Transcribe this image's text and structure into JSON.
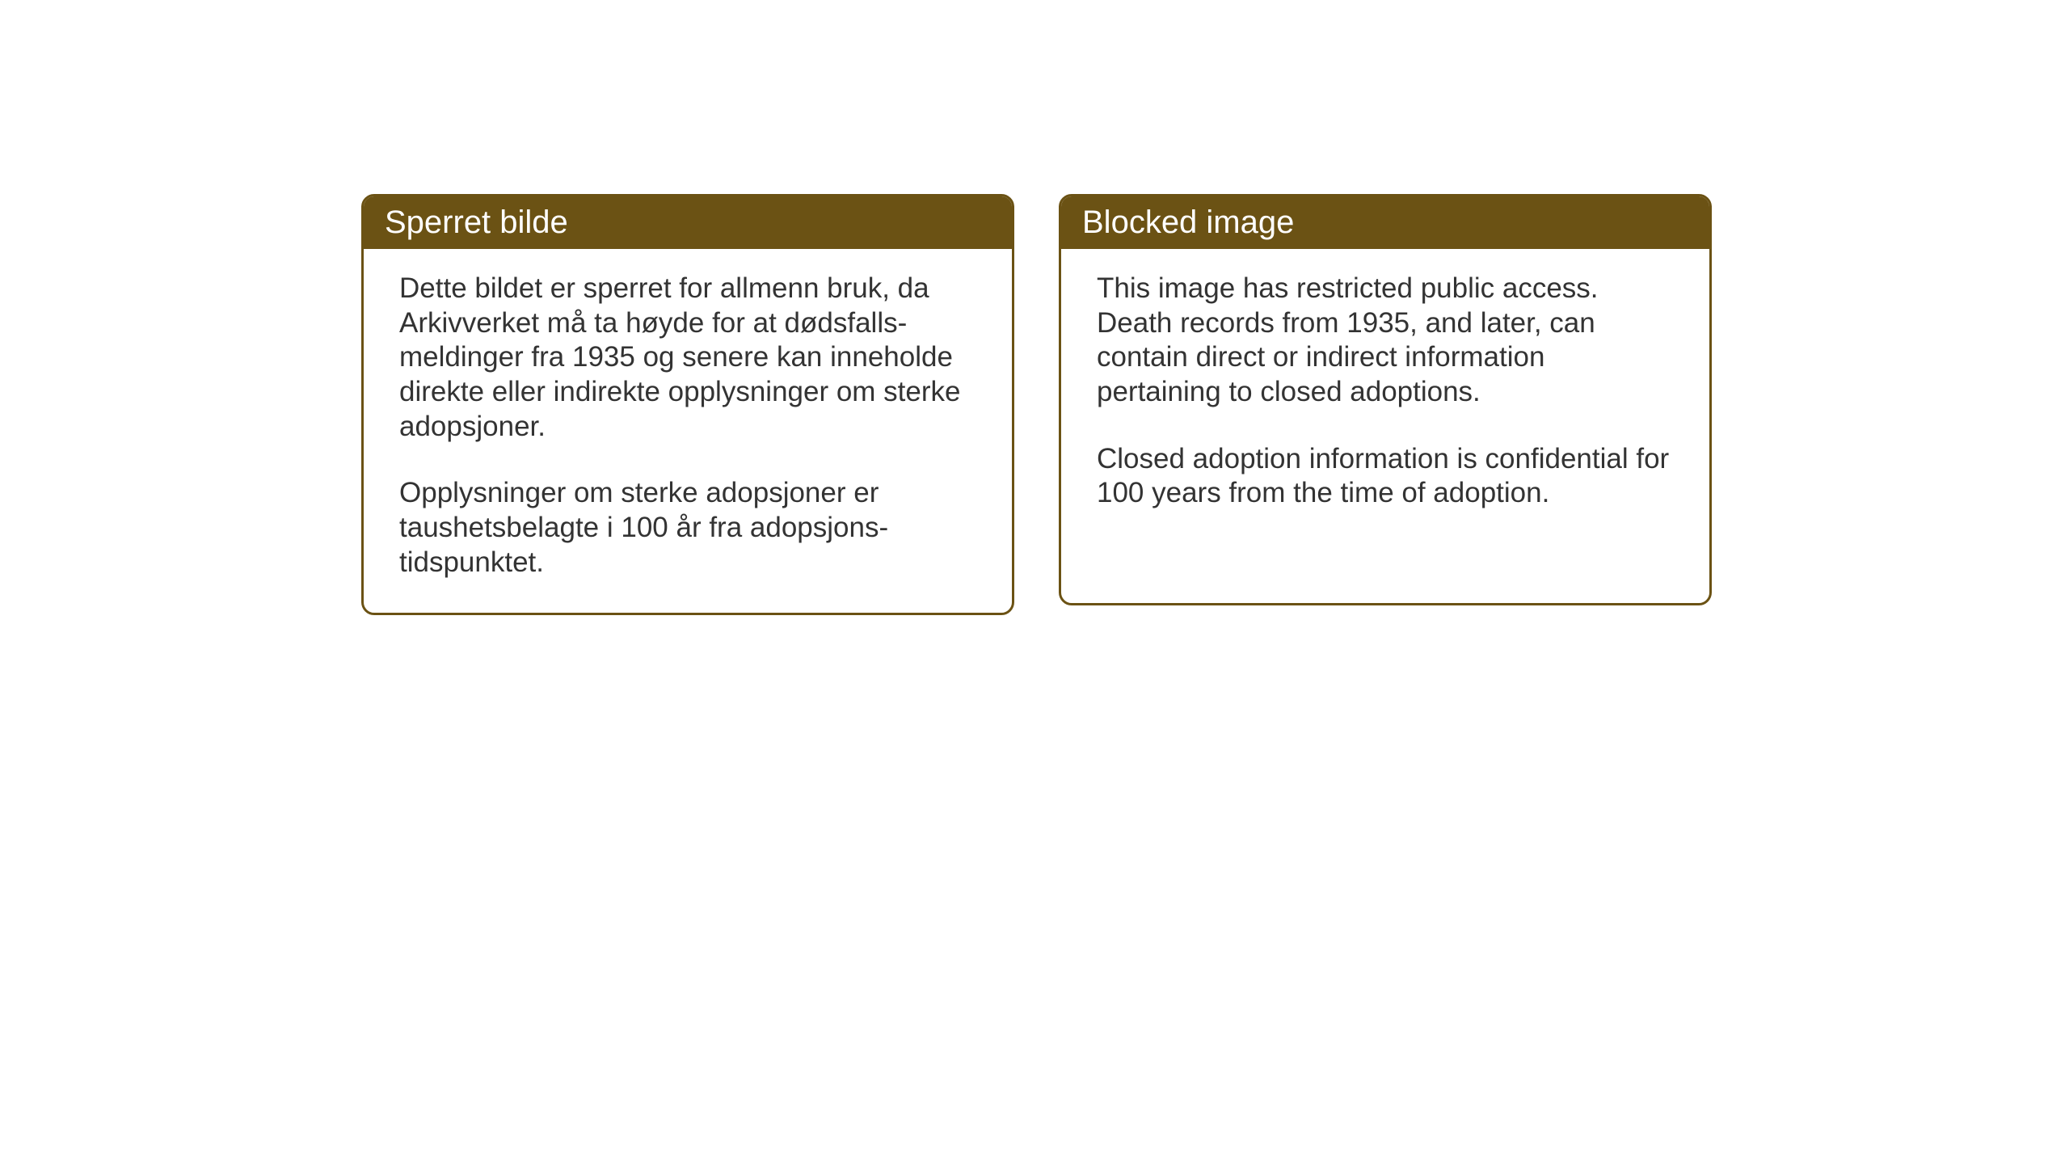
{
  "layout": {
    "background_color": "#ffffff",
    "card_border_color": "#6b5214",
    "card_header_bg": "#6b5214",
    "card_header_text_color": "#ffffff",
    "body_text_color": "#333333",
    "header_fontsize": 40,
    "body_fontsize": 35
  },
  "cards": {
    "norwegian": {
      "title": "Sperret bilde",
      "paragraph1": "Dette bildet er sperret for allmenn bruk, da Arkivverket må ta høyde for at dødsfalls-meldinger fra 1935 og senere kan inneholde direkte eller indirekte opplysninger om sterke adopsjoner.",
      "paragraph2": "Opplysninger om sterke adopsjoner er taushetsbelagte i 100 år fra adopsjons-tidspunktet."
    },
    "english": {
      "title": "Blocked image",
      "paragraph1": "This image has restricted public access. Death records from 1935, and later, can contain direct or indirect information pertaining to closed adoptions.",
      "paragraph2": "Closed adoption information is confidential for 100 years from the time of adoption."
    }
  }
}
